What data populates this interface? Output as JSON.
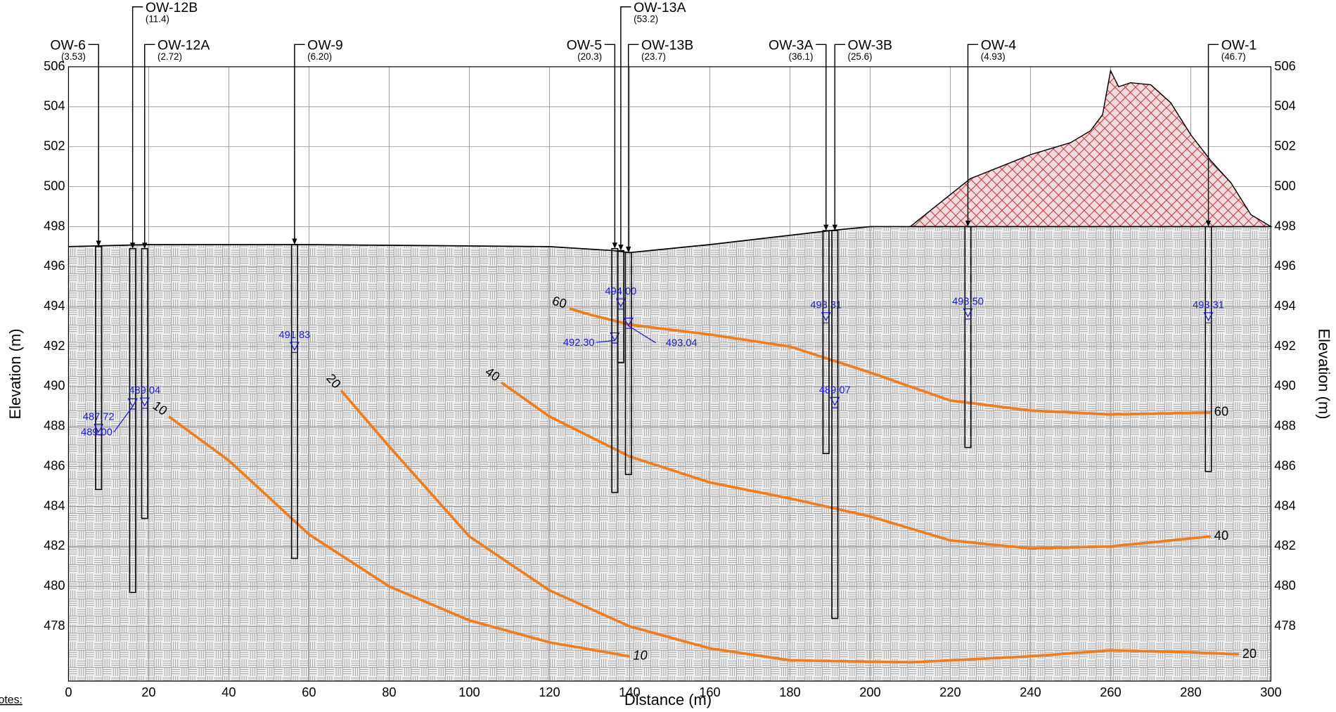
{
  "chart_data": {
    "type": "cross-section",
    "xlabel": "Distance (m)",
    "ylabel": "Elevation (m)",
    "xlim": [
      0,
      300
    ],
    "ylim": [
      475.26,
      506
    ],
    "xticks": [
      0,
      20,
      40,
      60,
      80,
      100,
      120,
      140,
      160,
      180,
      200,
      220,
      240,
      260,
      280,
      300
    ],
    "yticks": [
      478,
      480,
      482,
      484,
      486,
      488,
      490,
      492,
      494,
      496,
      498,
      500,
      502,
      504,
      506
    ],
    "grid": true,
    "notes_title": "otes:",
    "ground": {
      "x": [
        0,
        20,
        60,
        120,
        136,
        140,
        160,
        190,
        200,
        300
      ],
      "y": [
        497,
        497.1,
        497.1,
        497,
        496.8,
        496.7,
        497.1,
        497.8,
        498,
        498
      ]
    },
    "stockpile": {
      "color": "#c0303c",
      "x": [
        210,
        215,
        220,
        225,
        230,
        240,
        250,
        255,
        258,
        260,
        262,
        265,
        270,
        275,
        280,
        285,
        290,
        295,
        300
      ],
      "y": [
        498,
        498.8,
        499.6,
        500.4,
        500.8,
        501.6,
        502.2,
        502.8,
        503.6,
        505.8,
        505.0,
        505.2,
        505.1,
        504.2,
        502.6,
        501.3,
        500.2,
        498.6,
        498
      ]
    },
    "wells": [
      {
        "name": "OW-6",
        "x": 7.5,
        "reading": {
          "value": 3.53,
          "label": "(3.53)"
        },
        "top": 497,
        "bottom": 484.85,
        "water_level": 487.72
      },
      {
        "name": "OW-12B",
        "x": 16,
        "reading": {
          "value": 11.4,
          "label": "(11.4)"
        },
        "top": 496.9,
        "bottom": 479.7,
        "water_level": {
          "value": 489.0,
          "label": "489.00"
        }
      },
      {
        "name": "OW-12A",
        "x": 19,
        "reading": {
          "value": 2.72,
          "label": "(2.72)"
        },
        "top": 496.9,
        "bottom": 483.4,
        "water_level": 489.04
      },
      {
        "name": "OW-9",
        "x": 56.4,
        "reading": {
          "value": 6.2,
          "label": "(6.20)"
        },
        "top": 497.1,
        "bottom": 481.4,
        "water_level": 491.83
      },
      {
        "name": "OW-5",
        "x": 136.3,
        "reading": {
          "value": 20.3,
          "label": "(20.3)"
        },
        "top": 496.9,
        "bottom": 484.7,
        "water_level": {
          "value": 492.3,
          "label": "492.30"
        }
      },
      {
        "name": "OW-13A",
        "x": 137.8,
        "reading": {
          "value": 53.2,
          "label": "(53.2)"
        },
        "top": 496.8,
        "bottom": 491.2,
        "water_level": {
          "value": 494.0,
          "label": "494.00"
        }
      },
      {
        "name": "OW-13B",
        "x": 139.7,
        "reading": {
          "value": 23.7,
          "label": "(23.7)"
        },
        "top": 496.7,
        "bottom": 485.6,
        "water_level": 493.04
      },
      {
        "name": "OW-3A",
        "x": 189,
        "reading": {
          "value": 36.1,
          "label": "(36.1)"
        },
        "top": 497.8,
        "bottom": 486.65,
        "water_level": 493.31
      },
      {
        "name": "OW-3B",
        "x": 191.2,
        "reading": {
          "value": 25.6,
          "label": "(25.6)"
        },
        "top": 497.8,
        "bottom": 478.4,
        "water_level": 489.07
      },
      {
        "name": "OW-4",
        "x": 224.4,
        "reading": {
          "value": 4.93,
          "label": "(4.93)"
        },
        "top": 498,
        "bottom": 486.95,
        "water_level": {
          "value": 493.5,
          "label": "493.50"
        }
      },
      {
        "name": "OW-1",
        "x": 284.4,
        "reading": {
          "value": 46.7,
          "label": "(46.7)"
        },
        "top": 498,
        "bottom": 485.75,
        "water_level": 493.31
      }
    ],
    "well_color": "#000000",
    "water_color": "#1a1adc",
    "contour_color": "#f07c1c",
    "series": [
      {
        "name": "10",
        "x": [
          25,
          40,
          60,
          80,
          100,
          120,
          140
        ],
        "values": [
          488.5,
          486.3,
          482.6,
          480.0,
          478.3,
          477.2,
          476.5
        ]
      },
      {
        "name": "20",
        "x": [
          68,
          80,
          100,
          120,
          140,
          160,
          180,
          210,
          240,
          260,
          280,
          292
        ],
        "values": [
          489.8,
          487.0,
          482.5,
          479.8,
          478.0,
          476.9,
          476.3,
          476.2,
          476.5,
          476.8,
          476.7,
          476.6
        ]
      },
      {
        "name": "40",
        "x": [
          108,
          120,
          140,
          160,
          180,
          200,
          220,
          240,
          260,
          285
        ],
        "values": [
          490.2,
          488.5,
          486.5,
          485.2,
          484.4,
          483.5,
          482.3,
          481.9,
          482.0,
          482.5
        ]
      },
      {
        "name": "60",
        "x": [
          125,
          130,
          140,
          160,
          180,
          200,
          220,
          240,
          260,
          285
        ],
        "values": [
          493.9,
          493.6,
          493.1,
          492.6,
          492.0,
          490.7,
          489.3,
          488.8,
          488.6,
          488.7
        ]
      }
    ]
  }
}
